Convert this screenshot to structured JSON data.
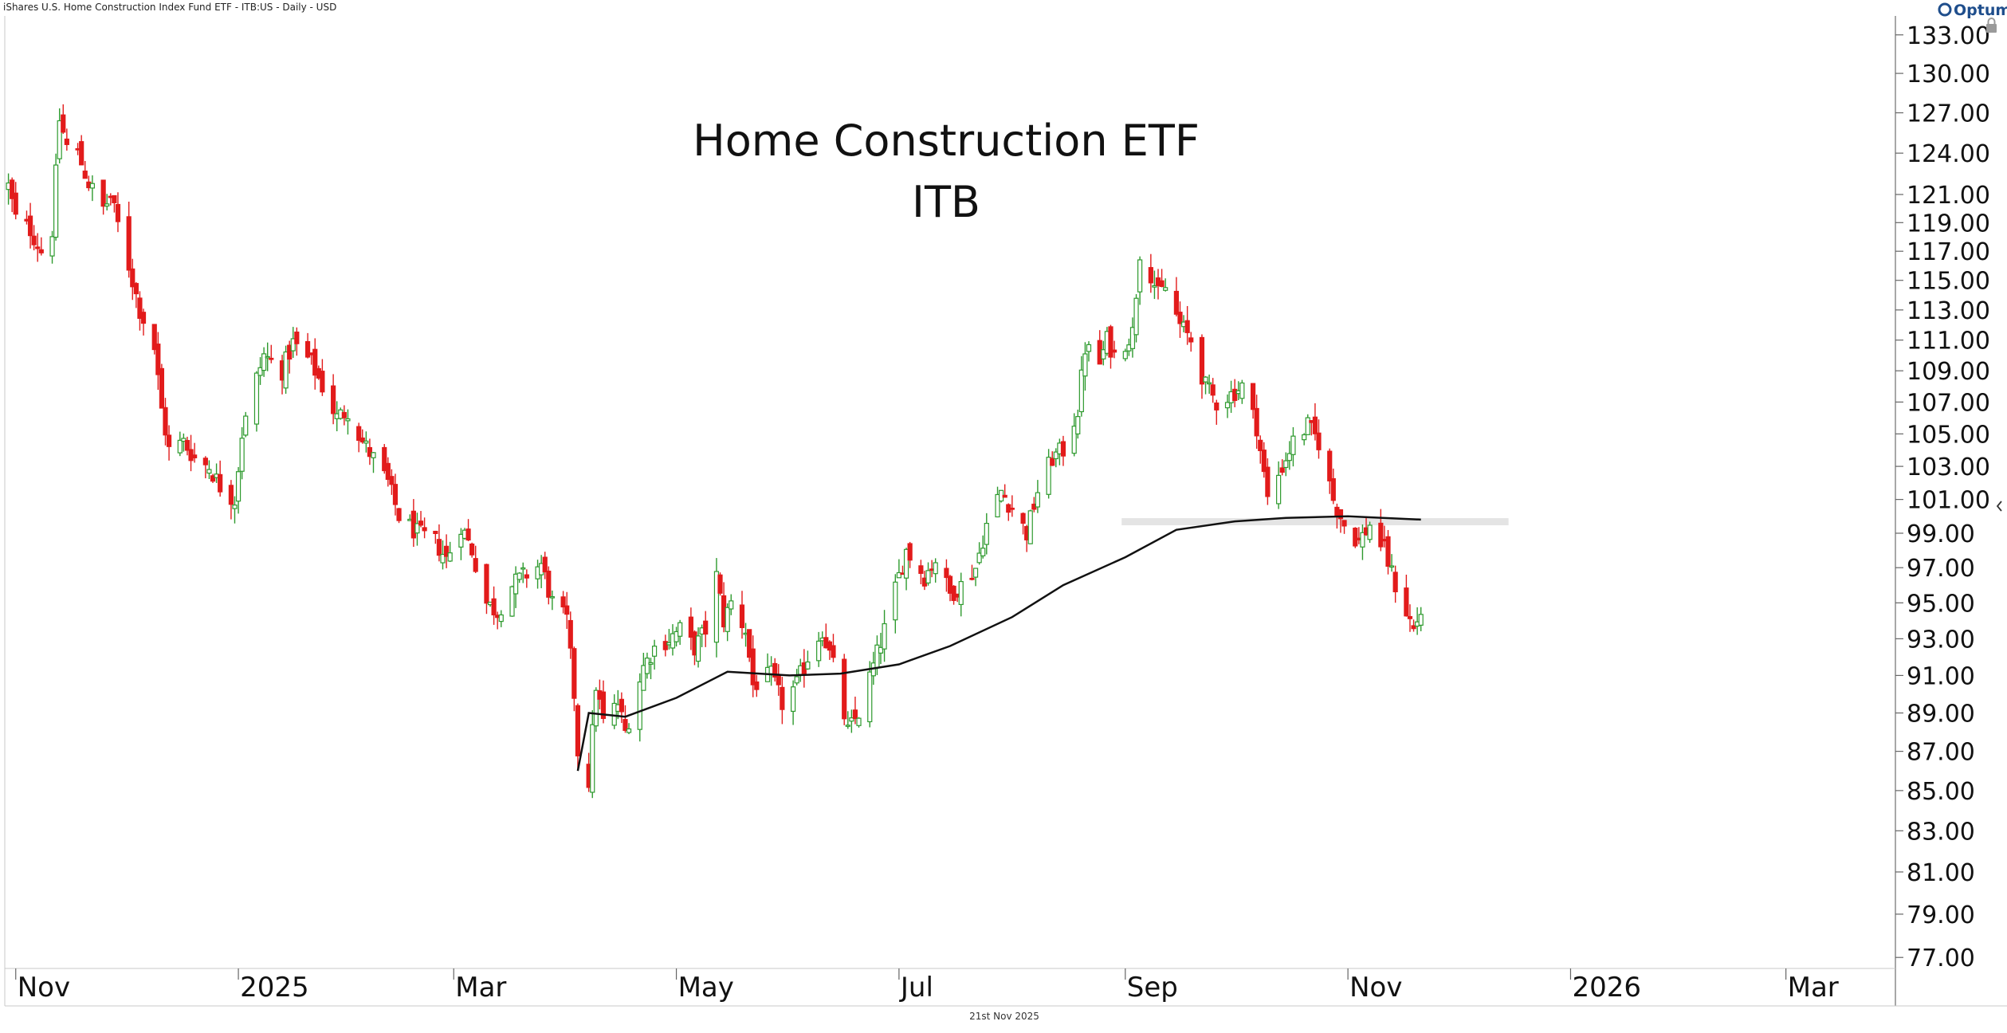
{
  "header": {
    "instrument": "iShares U.S. Home Construction Index Fund ETF - ITB:US - Daily - USD",
    "brand": "Optuma"
  },
  "footer": {
    "date": "21st Nov 2025"
  },
  "colors": {
    "up": "#2e9a2e",
    "down": "#e21b1b",
    "moving_average": "#111111",
    "resistance_band": "#e4e4e4",
    "background": "#ffffff"
  },
  "icons": {
    "lock": "lock-icon",
    "collapse": "chevron-left-icon"
  },
  "chart_data": {
    "type": "candlestick",
    "title": "Home Construction ETF",
    "subtitle": "ITB",
    "xlabel": "",
    "ylabel": "",
    "y_scale": "log",
    "ylim": [
      76.5,
      134.5
    ],
    "xlim": [
      "2024-10-29",
      "2026-03-31"
    ],
    "grid": false,
    "y_ticks": [
      "77.00",
      "79.00",
      "81.00",
      "83.00",
      "85.00",
      "87.00",
      "89.00",
      "91.00",
      "93.00",
      "95.00",
      "97.00",
      "99.00",
      "101.00",
      "103.00",
      "105.00",
      "107.00",
      "109.00",
      "111.00",
      "113.00",
      "115.00",
      "117.00",
      "119.00",
      "121.00",
      "124.00",
      "127.00",
      "130.00",
      "133.00"
    ],
    "x_ticks": [
      {
        "date": "2024-11-01",
        "label": "Nov"
      },
      {
        "date": "2025-01-01",
        "label": "2025"
      },
      {
        "date": "2025-03-01",
        "label": "Mar"
      },
      {
        "date": "2025-05-01",
        "label": "May"
      },
      {
        "date": "2025-07-01",
        "label": "Jul"
      },
      {
        "date": "2025-09-01",
        "label": "Sep"
      },
      {
        "date": "2025-11-01",
        "label": "Nov"
      },
      {
        "date": "2026-01-01",
        "label": "2026"
      },
      {
        "date": "2026-03-01",
        "label": "Mar"
      }
    ],
    "price_anchors": [
      {
        "date": "2024-10-30",
        "close": 121.6
      },
      {
        "date": "2024-11-01",
        "close": 119.3
      },
      {
        "date": "2024-11-05",
        "close": 118.5
      },
      {
        "date": "2024-11-08",
        "close": 117.0
      },
      {
        "date": "2024-11-11",
        "close": 118.5
      },
      {
        "date": "2024-11-13",
        "close": 126.5
      },
      {
        "date": "2024-11-15",
        "close": 124.5
      },
      {
        "date": "2024-11-18",
        "close": 124.0
      },
      {
        "date": "2024-11-21",
        "close": 121.8
      },
      {
        "date": "2024-11-25",
        "close": 120.0
      },
      {
        "date": "2024-11-27",
        "close": 120.8
      },
      {
        "date": "2024-12-02",
        "close": 116.0
      },
      {
        "date": "2024-12-05",
        "close": 113.0
      },
      {
        "date": "2024-12-09",
        "close": 110.5
      },
      {
        "date": "2024-12-11",
        "close": 106.5
      },
      {
        "date": "2024-12-13",
        "close": 104.0
      },
      {
        "date": "2024-12-17",
        "close": 104.5
      },
      {
        "date": "2024-12-20",
        "close": 103.5
      },
      {
        "date": "2024-12-24",
        "close": 103.0
      },
      {
        "date": "2024-12-27",
        "close": 101.8
      },
      {
        "date": "2024-12-31",
        "close": 101.0
      },
      {
        "date": "2025-01-02",
        "close": 105.0
      },
      {
        "date": "2025-01-06",
        "close": 108.5
      },
      {
        "date": "2025-01-08",
        "close": 110.0
      },
      {
        "date": "2025-01-13",
        "close": 109.0
      },
      {
        "date": "2025-01-16",
        "close": 110.8
      },
      {
        "date": "2025-01-21",
        "close": 109.5
      },
      {
        "date": "2025-01-24",
        "close": 108.0
      },
      {
        "date": "2025-01-28",
        "close": 106.0
      },
      {
        "date": "2025-01-31",
        "close": 106.5
      },
      {
        "date": "2025-02-04",
        "close": 104.5
      },
      {
        "date": "2025-02-07",
        "close": 103.5
      },
      {
        "date": "2025-02-11",
        "close": 102.0
      },
      {
        "date": "2025-02-14",
        "close": 100.0
      },
      {
        "date": "2025-02-19",
        "close": 99.0
      },
      {
        "date": "2025-02-24",
        "close": 98.5
      },
      {
        "date": "2025-02-27",
        "close": 97.5
      },
      {
        "date": "2025-03-03",
        "close": 99.5
      },
      {
        "date": "2025-03-06",
        "close": 98.0
      },
      {
        "date": "2025-03-10",
        "close": 95.0
      },
      {
        "date": "2025-03-13",
        "close": 94.5
      },
      {
        "date": "2025-03-17",
        "close": 96.0
      },
      {
        "date": "2025-03-20",
        "close": 96.5
      },
      {
        "date": "2025-03-25",
        "close": 97.2
      },
      {
        "date": "2025-03-28",
        "close": 95.0
      },
      {
        "date": "2025-04-01",
        "close": 94.0
      },
      {
        "date": "2025-04-03",
        "close": 90.0
      },
      {
        "date": "2025-04-04",
        "close": 87.0
      },
      {
        "date": "2025-04-07",
        "close": 85.5
      },
      {
        "date": "2025-04-09",
        "close": 90.5
      },
      {
        "date": "2025-04-11",
        "close": 88.5
      },
      {
        "date": "2025-04-15",
        "close": 89.5
      },
      {
        "date": "2025-04-17",
        "close": 88.0
      },
      {
        "date": "2025-04-22",
        "close": 91.5
      },
      {
        "date": "2025-04-25",
        "close": 92.5
      },
      {
        "date": "2025-04-29",
        "close": 93.0
      },
      {
        "date": "2025-05-02",
        "close": 93.5
      },
      {
        "date": "2025-05-06",
        "close": 92.5
      },
      {
        "date": "2025-05-09",
        "close": 93.5
      },
      {
        "date": "2025-05-12",
        "close": 96.5
      },
      {
        "date": "2025-05-14",
        "close": 94.0
      },
      {
        "date": "2025-05-16",
        "close": 95.0
      },
      {
        "date": "2025-05-20",
        "close": 93.5
      },
      {
        "date": "2025-05-22",
        "close": 90.5
      },
      {
        "date": "2025-05-27",
        "close": 91.0
      },
      {
        "date": "2025-05-30",
        "close": 89.5
      },
      {
        "date": "2025-06-03",
        "close": 90.5
      },
      {
        "date": "2025-06-06",
        "close": 92.0
      },
      {
        "date": "2025-06-10",
        "close": 93.5
      },
      {
        "date": "2025-06-13",
        "close": 91.5
      },
      {
        "date": "2025-06-17",
        "close": 88.0
      },
      {
        "date": "2025-06-20",
        "close": 89.0
      },
      {
        "date": "2025-06-24",
        "close": 91.5
      },
      {
        "date": "2025-06-27",
        "close": 93.5
      },
      {
        "date": "2025-07-01",
        "close": 96.5
      },
      {
        "date": "2025-07-03",
        "close": 98.0
      },
      {
        "date": "2025-07-08",
        "close": 96.5
      },
      {
        "date": "2025-07-11",
        "close": 97.5
      },
      {
        "date": "2025-07-15",
        "close": 95.5
      },
      {
        "date": "2025-07-18",
        "close": 96.0
      },
      {
        "date": "2025-07-22",
        "close": 97.0
      },
      {
        "date": "2025-07-25",
        "close": 99.5
      },
      {
        "date": "2025-07-29",
        "close": 101.5
      },
      {
        "date": "2025-08-01",
        "close": 100.5
      },
      {
        "date": "2025-08-05",
        "close": 99.0
      },
      {
        "date": "2025-08-08",
        "close": 101.5
      },
      {
        "date": "2025-08-12",
        "close": 103.5
      },
      {
        "date": "2025-08-15",
        "close": 104.0
      },
      {
        "date": "2025-08-19",
        "close": 106.5
      },
      {
        "date": "2025-08-21",
        "close": 110.5
      },
      {
        "date": "2025-08-25",
        "close": 109.5
      },
      {
        "date": "2025-08-27",
        "close": 111.0
      },
      {
        "date": "2025-08-29",
        "close": 110.0
      },
      {
        "date": "2025-09-03",
        "close": 111.5
      },
      {
        "date": "2025-09-05",
        "close": 117.0
      },
      {
        "date": "2025-09-08",
        "close": 115.5
      },
      {
        "date": "2025-09-10",
        "close": 114.0
      },
      {
        "date": "2025-09-12",
        "close": 114.5
      },
      {
        "date": "2025-09-16",
        "close": 112.0
      },
      {
        "date": "2025-09-19",
        "close": 111.0
      },
      {
        "date": "2025-09-23",
        "close": 108.0
      },
      {
        "date": "2025-09-26",
        "close": 107.0
      },
      {
        "date": "2025-09-30",
        "close": 107.5
      },
      {
        "date": "2025-10-03",
        "close": 108.0
      },
      {
        "date": "2025-10-07",
        "close": 105.5
      },
      {
        "date": "2025-10-10",
        "close": 101.0
      },
      {
        "date": "2025-10-14",
        "close": 103.0
      },
      {
        "date": "2025-10-17",
        "close": 104.5
      },
      {
        "date": "2025-10-21",
        "close": 105.5
      },
      {
        "date": "2025-10-24",
        "close": 104.5
      },
      {
        "date": "2025-10-28",
        "close": 101.0
      },
      {
        "date": "2025-10-31",
        "close": 99.5
      },
      {
        "date": "2025-11-04",
        "close": 98.5
      },
      {
        "date": "2025-11-07",
        "close": 99.5
      },
      {
        "date": "2025-11-11",
        "close": 98.0
      },
      {
        "date": "2025-11-14",
        "close": 96.0
      },
      {
        "date": "2025-11-17",
        "close": 94.5
      },
      {
        "date": "2025-11-19",
        "close": 93.5
      },
      {
        "date": "2025-11-21",
        "close": 94.5
      }
    ],
    "moving_average": [
      {
        "date": "2025-04-04",
        "value": 86.0
      },
      {
        "date": "2025-04-07",
        "value": 89.0
      },
      {
        "date": "2025-04-17",
        "value": 88.8
      },
      {
        "date": "2025-05-01",
        "value": 89.8
      },
      {
        "date": "2025-05-15",
        "value": 91.2
      },
      {
        "date": "2025-06-01",
        "value": 91.0
      },
      {
        "date": "2025-06-15",
        "value": 91.1
      },
      {
        "date": "2025-07-01",
        "value": 91.6
      },
      {
        "date": "2025-07-15",
        "value": 92.6
      },
      {
        "date": "2025-08-01",
        "value": 94.2
      },
      {
        "date": "2025-08-15",
        "value": 96.0
      },
      {
        "date": "2025-09-01",
        "value": 97.6
      },
      {
        "date": "2025-09-15",
        "value": 99.2
      },
      {
        "date": "2025-10-01",
        "value": 99.7
      },
      {
        "date": "2025-10-15",
        "value": 99.9
      },
      {
        "date": "2025-11-01",
        "value": 100.0
      },
      {
        "date": "2025-11-21",
        "value": 99.8
      }
    ],
    "annotations": [
      {
        "type": "horizontal-band",
        "y": 99.7,
        "x_start": "2025-08-31",
        "x_end": "2025-12-15"
      }
    ]
  }
}
